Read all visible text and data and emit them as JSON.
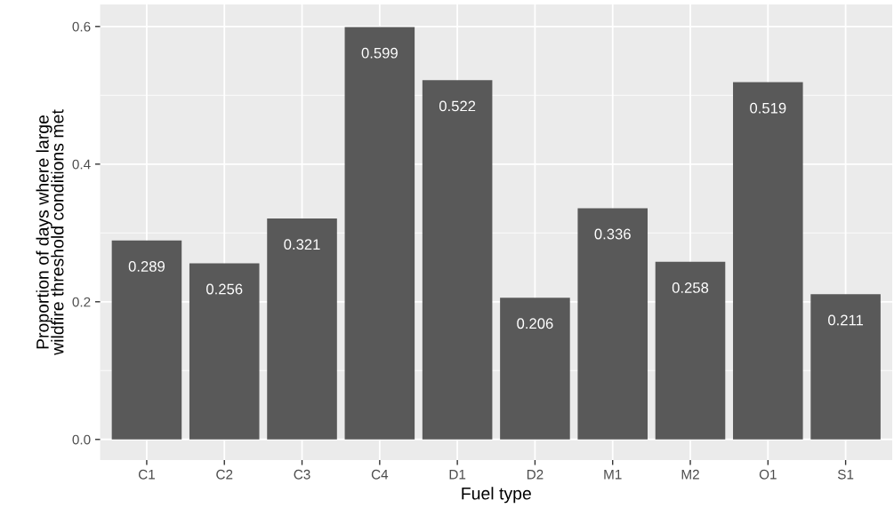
{
  "chart_data": {
    "type": "bar",
    "xlabel": "Fuel type",
    "ylabel": "Proportion of days where large\nwildfire threshold conditions met",
    "categories": [
      "C1",
      "C2",
      "C3",
      "C4",
      "D1",
      "D2",
      "M1",
      "M2",
      "O1",
      "S1"
    ],
    "values": [
      0.289,
      0.256,
      0.321,
      0.599,
      0.522,
      0.206,
      0.336,
      0.258,
      0.519,
      0.211
    ],
    "color": "#595959",
    "data_labels": true,
    "grid": true,
    "ylim": [
      -0.03,
      0.632
    ],
    "yticks": [
      {
        "value": 0,
        "label": "0.0"
      },
      {
        "value": 0.2,
        "label": "0.2"
      },
      {
        "value": 0.4,
        "label": "0.4"
      },
      {
        "value": 0.6,
        "label": "0.6"
      }
    ]
  }
}
